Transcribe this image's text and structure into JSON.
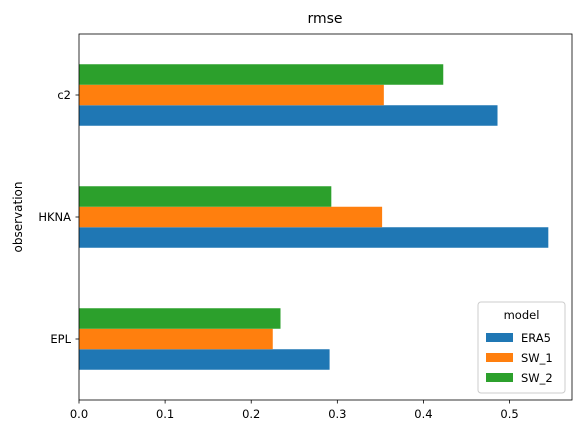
{
  "chart_data": {
    "type": "bar",
    "orientation": "horizontal",
    "title": "rmse",
    "xlabel": "",
    "ylabel": "observation",
    "categories": [
      "EPL",
      "HKNA",
      "c2"
    ],
    "series": [
      {
        "name": "ERA5",
        "color": "#1f77b4",
        "values": [
          0.291,
          0.545,
          0.486
        ]
      },
      {
        "name": "SW_1",
        "color": "#ff7f0e",
        "values": [
          0.225,
          0.352,
          0.354
        ]
      },
      {
        "name": "SW_2",
        "color": "#2ca02c",
        "values": [
          0.234,
          0.293,
          0.423
        ]
      }
    ],
    "xlim": [
      0,
      0.5725
    ],
    "xticks": [
      0.0,
      0.1,
      0.2,
      0.3,
      0.4,
      0.5
    ],
    "xtick_labels": [
      "0.0",
      "0.1",
      "0.2",
      "0.3",
      "0.4",
      "0.5"
    ],
    "grid": false,
    "legend": {
      "title": "model",
      "placement": "lower right"
    }
  }
}
